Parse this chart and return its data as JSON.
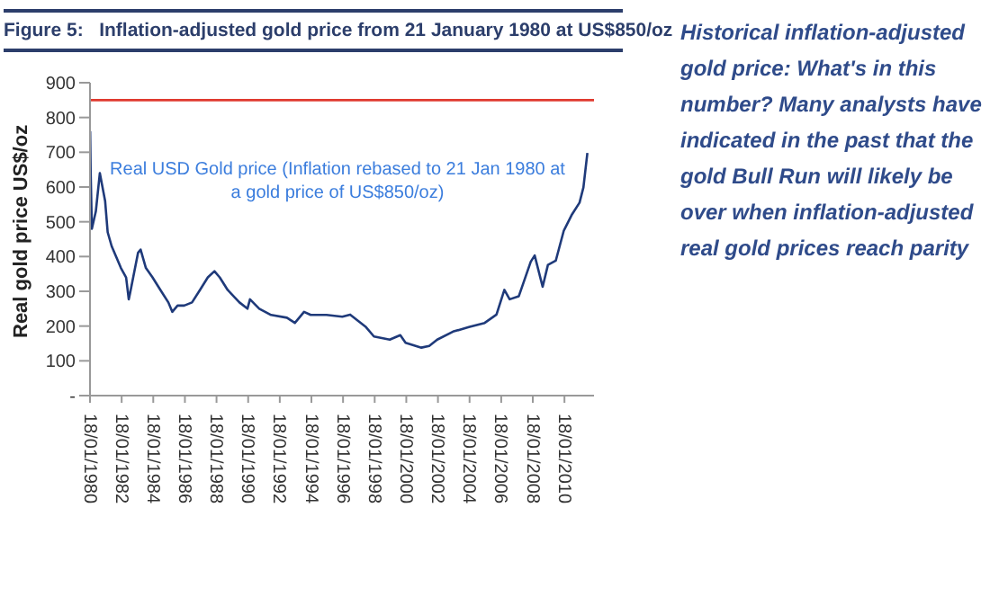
{
  "chart_data": {
    "type": "line",
    "title": "Figure 5:   Inflation-adjusted gold price from 21 January 1980 at US$850/oz",
    "ylabel": "Real gold price US$/oz",
    "annotations": [
      "Historical inflation-adjusted gold price: What's in this number? Many analysts have indicated in the past that the gold Bull Run will likely be over when inflation-adjusted real gold prices reach parity"
    ],
    "x": [
      "1980-01-21",
      "1980-02",
      "1980-03",
      "1980-06",
      "1980-09",
      "1980-11",
      "1981-01",
      "1981-03",
      "1981-06",
      "1982-01",
      "1982-05",
      "1982-07",
      "1982-08",
      "1983-02",
      "1983-04",
      "1983-08",
      "1984-01",
      "1984-07",
      "1985-01",
      "1985-04",
      "1985-08",
      "1986-01",
      "1986-07",
      "1987-01",
      "1987-07",
      "1987-12",
      "1988-04",
      "1988-10",
      "1989-07",
      "1990-01",
      "1990-03",
      "1990-10",
      "1991-07",
      "1992-07",
      "1993-01",
      "1993-08",
      "1994-01",
      "1995-01",
      "1996-01",
      "1996-07",
      "1997-07",
      "1998-01",
      "1999-01",
      "1999-09",
      "2000-01",
      "2001-01",
      "2001-07",
      "2002-01",
      "2003-01",
      "2004-01",
      "2005-01",
      "2005-10",
      "2006-04",
      "2006-08",
      "2007-03",
      "2007-12",
      "2008-03",
      "2008-09",
      "2009-01",
      "2009-07",
      "2010-01",
      "2010-07",
      "2011-01",
      "2011-04",
      "2011-07"
    ],
    "series": [
      {
        "name": "Real USD Gold price (Inflation rebased to 21 Jan 1980 at a gold price of US$850/oz)",
        "color": "#1f3a7a",
        "values": [
          760,
          650,
          480,
          530,
          640,
          600,
          560,
          470,
          430,
          367,
          340,
          277,
          295,
          411,
          420,
          367,
          340,
          304,
          268,
          241,
          259,
          259,
          268,
          304,
          340,
          358,
          340,
          304,
          268,
          250,
          277,
          250,
          232,
          224,
          209,
          241,
          232,
          232,
          227,
          233,
          197,
          170,
          161,
          174,
          152,
          138,
          143,
          161,
          184,
          197,
          209,
          233,
          304,
          277,
          286,
          385,
          403,
          313,
          376,
          388,
          474,
          519,
          555,
          599,
          698
        ]
      }
    ],
    "xlim": [
      "1980-01-18",
      "2011-12-01"
    ],
    "xticks": [
      {
        "value": "1980-01-18",
        "label": "18/01/1980"
      },
      {
        "value": "1982-01-18",
        "label": "18/01/1982"
      },
      {
        "value": "1984-01-18",
        "label": "18/01/1984"
      },
      {
        "value": "1986-01-18",
        "label": "18/01/1986"
      },
      {
        "value": "1988-01-18",
        "label": "18/01/1988"
      },
      {
        "value": "1990-01-18",
        "label": "18/01/1990"
      },
      {
        "value": "1992-01-18",
        "label": "18/01/1992"
      },
      {
        "value": "1994-01-18",
        "label": "18/01/1994"
      },
      {
        "value": "1996-01-18",
        "label": "18/01/1996"
      },
      {
        "value": "1998-01-18",
        "label": "18/01/1998"
      },
      {
        "value": "2000-01-18",
        "label": "18/01/2000"
      },
      {
        "value": "2002-01-18",
        "label": "18/01/2002"
      },
      {
        "value": "2004-01-18",
        "label": "18/01/2004"
      },
      {
        "value": "2006-01-18",
        "label": "18/01/2006"
      },
      {
        "value": "2008-01-18",
        "label": "18/01/2008"
      },
      {
        "value": "2010-01-18",
        "label": "18/01/2010"
      }
    ],
    "ylim": [
      0,
      900
    ],
    "yticks": [
      {
        "value": 0,
        "label": "-"
      },
      100,
      200,
      300,
      400,
      500,
      600,
      700,
      800,
      900
    ],
    "ref_lines": [
      {
        "axis": "y",
        "value": 850,
        "color": "#e03a2f"
      }
    ],
    "grid": false,
    "legend": false,
    "marker": "none",
    "line_style": "solid"
  }
}
